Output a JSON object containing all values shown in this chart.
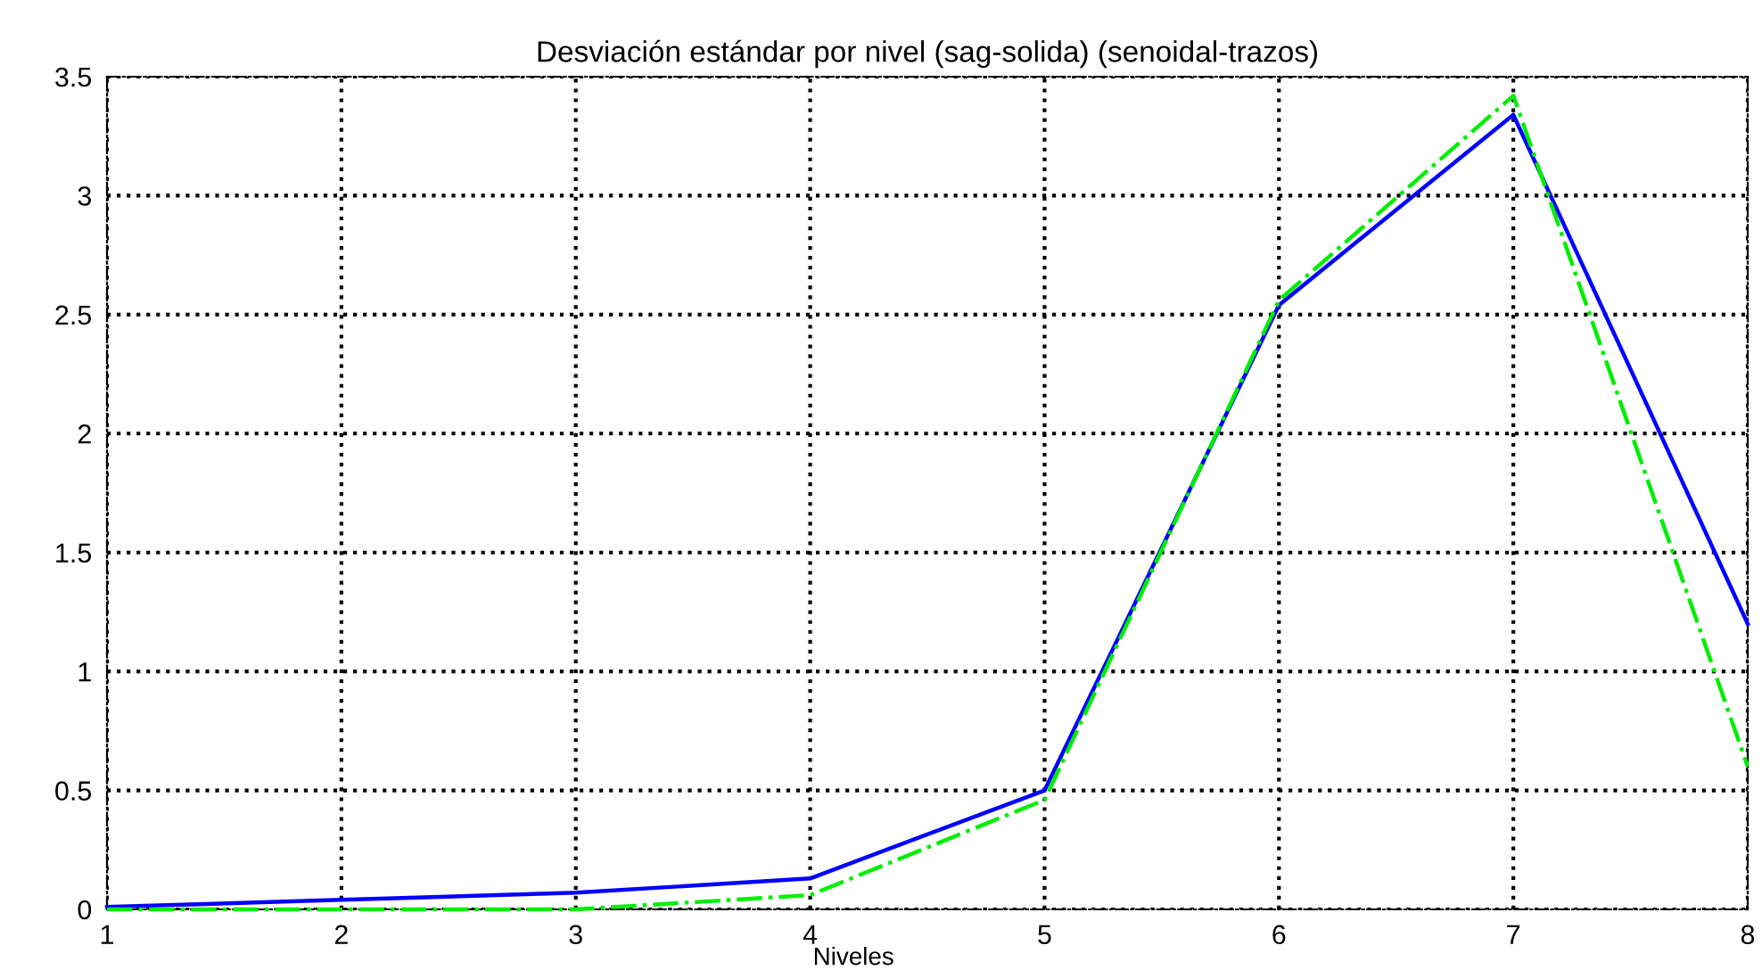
{
  "chart_data": {
    "type": "line",
    "title": "Desviación estándar por nivel (sag-solida) (senoidal-trazos)",
    "xlabel": "Niveles",
    "x": [
      1,
      2,
      3,
      4,
      5,
      6,
      7,
      8
    ],
    "series": [
      {
        "color": "#0000ff",
        "line_style": "solid",
        "values": [
          0.01,
          0.04,
          0.07,
          0.13,
          0.5,
          2.54,
          3.34,
          1.2
        ]
      },
      {
        "color": "#00ee00",
        "line_style": "dashed",
        "values": [
          0,
          0,
          0,
          0.06,
          0.46,
          2.56,
          3.42,
          0.6
        ]
      }
    ],
    "xlim": [
      1,
      8
    ],
    "xticks": [
      1,
      2,
      3,
      4,
      5,
      6,
      7,
      8
    ],
    "ylim": [
      0,
      3.5
    ],
    "yticks": [
      0,
      0.5,
      1,
      1.5,
      2,
      2.5,
      3,
      3.5
    ],
    "grid": true,
    "marker": "none",
    "legend": false
  }
}
